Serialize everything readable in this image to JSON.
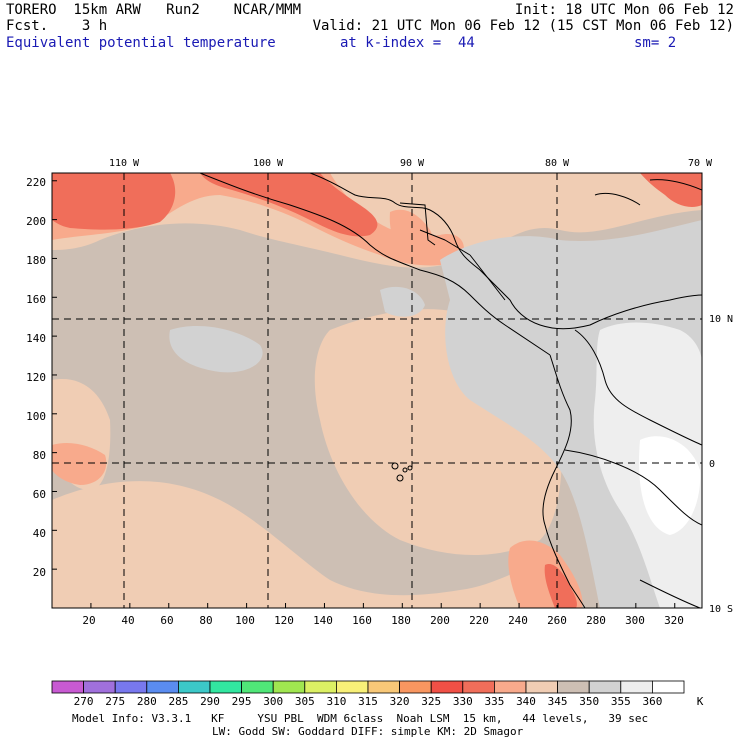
{
  "header": {
    "title": "TORERO  15km ARW   Run2    NCAR/MMM",
    "forecast": "Fcst.    3 h",
    "init": "Init: 18 UTC Mon 06 Feb 12",
    "valid": "Valid: 21 UTC Mon 06 Feb 12 (15 CST Mon 06 Feb 12)",
    "field": "Equivalent potential temperature",
    "level": "at k-index =  44",
    "smoothing": "sm= 2"
  },
  "map": {
    "lon_labels": [
      "110 W",
      "100 W",
      "90 W",
      "80 W",
      "70 W"
    ],
    "lat_labels": [
      "10 N",
      "0",
      "10 S"
    ],
    "x_ticks": [
      "20",
      "40",
      "60",
      "80",
      "100",
      "120",
      "140",
      "160",
      "180",
      "200",
      "220",
      "240",
      "260",
      "280",
      "300",
      "320"
    ],
    "y_ticks": [
      "20",
      "40",
      "60",
      "80",
      "100",
      "120",
      "140",
      "160",
      "180",
      "200",
      "220"
    ],
    "x_range": [
      0,
      334
    ],
    "y_range": [
      0,
      224
    ]
  },
  "legend": {
    "labels": [
      "270",
      "275",
      "280",
      "285",
      "290",
      "295",
      "300",
      "305",
      "310",
      "315",
      "320",
      "325",
      "330",
      "335",
      "340",
      "345",
      "350",
      "355",
      "360"
    ],
    "unit": "K",
    "colors": [
      "#c85ad2",
      "#a070dc",
      "#7878ee",
      "#5a8cf0",
      "#3cc8c8",
      "#32e6a0",
      "#50e678",
      "#a0e650",
      "#dcf064",
      "#f8f078",
      "#f8c878",
      "#f89660",
      "#f05046",
      "#f06e5a",
      "#f8aa8c",
      "#f0cdb4",
      "#cdbfb4",
      "#d2d2d2",
      "#eeeeee",
      "#ffffff"
    ]
  },
  "footer": {
    "line1": "Model Info: V3.3.1   KF     YSU PBL  WDM 6class  Noah LSM  15 km,   44 levels,   39 sec",
    "line2": "LW: Godd SW: Goddard DIFF: simple KM: 2D Smagor"
  }
}
